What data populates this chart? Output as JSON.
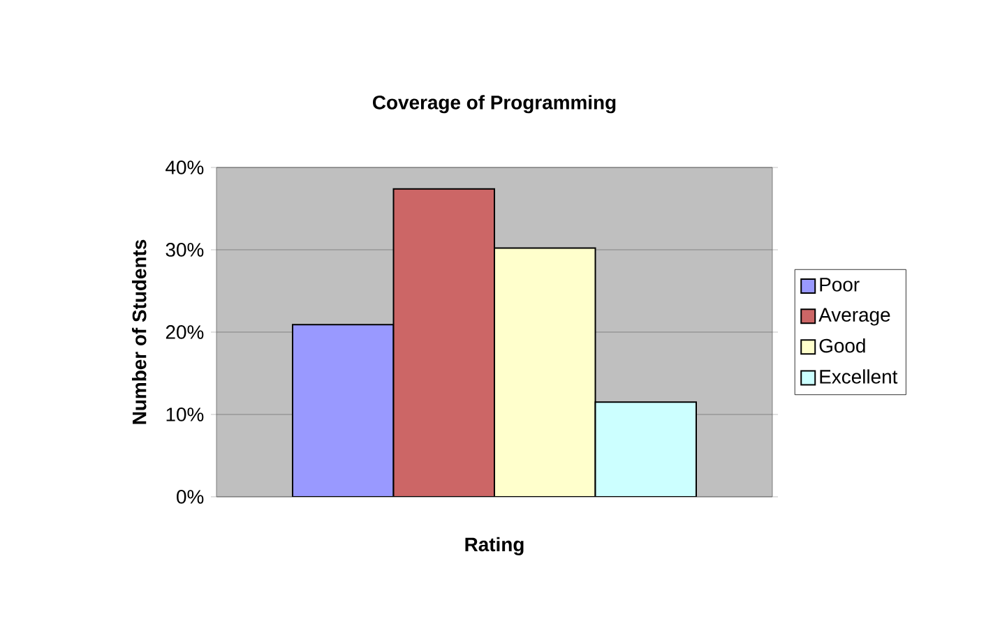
{
  "chart_data": {
    "type": "bar",
    "title": "Coverage of Programming",
    "xlabel": "Rating",
    "ylabel": "Number of Students",
    "categories": [
      null
    ],
    "series": [
      {
        "name": "Poor",
        "color": "#9999ff",
        "values": [
          20.9
        ]
      },
      {
        "name": "Average",
        "color": "#cc6666",
        "values": [
          37.4
        ]
      },
      {
        "name": "Good",
        "color": "#ffffcc",
        "values": [
          30.2
        ]
      },
      {
        "name": "Excellent",
        "color": "#ccffff",
        "values": [
          11.5
        ]
      }
    ],
    "ylim": [
      0,
      40
    ],
    "yticks": [
      {
        "value": 0,
        "label": "0%"
      },
      {
        "value": 10,
        "label": "10%"
      },
      {
        "value": 20,
        "label": "20%"
      },
      {
        "value": 30,
        "label": "30%"
      },
      {
        "value": 40,
        "label": "40%"
      }
    ],
    "grid": "y",
    "legend": "right"
  }
}
